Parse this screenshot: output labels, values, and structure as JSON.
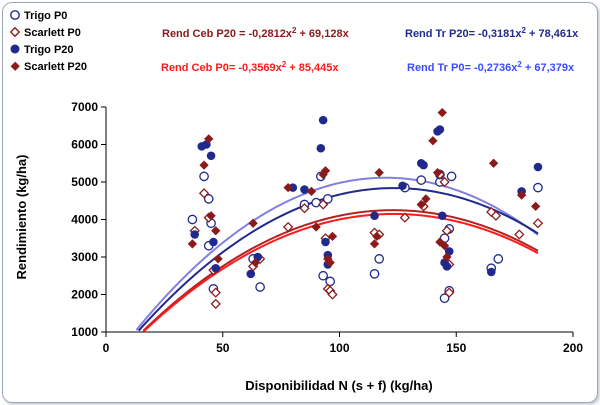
{
  "colors": {
    "trigo": "#1f2a8c",
    "scarlett": "#8b1a1a",
    "eq_ceb_p20": "#8b1a1a",
    "eq_ceb_p0": "#ff1a1a",
    "eq_tr_p20": "#1f2a8c",
    "eq_tr_p0": "#3a4cff",
    "curve_ceb_p20": "#b22222",
    "curve_ceb_p0": "#8080e0",
    "curve_tr_p20": "#1f2a8c",
    "curve_tr_p0": "#ff1a1a"
  },
  "chart_data": {
    "type": "scatter",
    "title": "",
    "xlabel": "Disponibilidad N (s + f) (kg/ha)",
    "ylabel": "Rendimiento (kg/ha)",
    "xlim": [
      0,
      200
    ],
    "ylim": [
      1000,
      7000
    ],
    "xticks": [
      0,
      50,
      100,
      150,
      200
    ],
    "yticks": [
      1000,
      2000,
      3000,
      4000,
      5000,
      6000,
      7000
    ],
    "grid": false,
    "legend_position": "top-left",
    "series": [
      {
        "name": "Trigo P0",
        "marker": "open-circle",
        "color": "#1f2a8c",
        "x": [
          37,
          42,
          44,
          44,
          45,
          46,
          63,
          66,
          85,
          90,
          92,
          93,
          95,
          96,
          115,
          117,
          128,
          135,
          143,
          143,
          145,
          145,
          147,
          147,
          148,
          165,
          168,
          185
        ],
        "y": [
          4000,
          5150,
          4550,
          3300,
          3900,
          2150,
          2950,
          2200,
          4400,
          4450,
          5150,
          2500,
          4550,
          2350,
          2550,
          2950,
          4850,
          5050,
          5000,
          5200,
          1900,
          3500,
          3750,
          2100,
          5150,
          2700,
          2950,
          4850
        ]
      },
      {
        "name": "Scarlett P0",
        "marker": "open-diamond",
        "color": "#8b1a1a",
        "x": [
          38,
          42,
          44,
          46,
          47,
          47,
          63,
          66,
          78,
          85,
          93,
          94,
          95,
          96,
          97,
          115,
          117,
          128,
          136,
          143,
          145,
          146,
          147,
          147,
          165,
          167,
          177,
          185
        ],
        "y": [
          3700,
          4700,
          4050,
          2650,
          2050,
          1750,
          2750,
          2950,
          3800,
          4300,
          4400,
          3500,
          2150,
          2100,
          2000,
          3650,
          3600,
          4050,
          4350,
          5200,
          5000,
          3700,
          2800,
          2050,
          4200,
          4100,
          3600,
          3900
        ]
      },
      {
        "name": "Trigo P20",
        "marker": "filled-circle",
        "color": "#1f2a8c",
        "x": [
          38,
          41,
          43,
          45,
          46,
          47,
          62,
          65,
          80,
          85,
          92,
          93,
          94,
          95,
          95,
          115,
          127,
          135,
          136,
          142,
          143,
          144,
          145,
          146,
          147,
          165,
          178,
          185
        ],
        "y": [
          3600,
          5950,
          6000,
          5700,
          3400,
          2700,
          2550,
          3000,
          4850,
          4800,
          5900,
          6650,
          3400,
          3050,
          2800,
          4100,
          4900,
          5500,
          5450,
          6350,
          6400,
          4100,
          2850,
          2750,
          3150,
          2600,
          4750,
          5400
        ]
      },
      {
        "name": "Scarlett P20",
        "marker": "filled-diamond",
        "color": "#8b1a1a",
        "x": [
          37,
          42,
          44,
          45,
          47,
          48,
          63,
          64,
          78,
          88,
          90,
          93,
          94,
          95,
          96,
          97,
          115,
          116,
          117,
          135,
          137,
          140,
          142,
          143,
          144,
          145,
          146,
          166,
          178,
          184
        ],
        "y": [
          3350,
          5450,
          6150,
          4100,
          3700,
          2950,
          3900,
          2850,
          4850,
          4750,
          3800,
          5200,
          5300,
          2950,
          2850,
          3550,
          3350,
          3550,
          5250,
          4400,
          4550,
          6100,
          5250,
          3400,
          6850,
          3300,
          3000,
          5500,
          4650,
          4350
        ]
      }
    ],
    "fits": [
      {
        "name": "Rend Ceb P20",
        "label": "Rend Ceb P20 = -0,2812x² + 69,128x",
        "a": -0.2812,
        "b": 69.128,
        "color": "#b22222"
      },
      {
        "name": "Rend Ceb P0",
        "label": "Rend Ceb P0= -0,3569x² + 85,445x",
        "a": -0.3569,
        "b": 85.445,
        "color": "#8080e0"
      },
      {
        "name": "Rend Tr P20",
        "label": "Rend Tr P20= -0,3181x² + 78,461x",
        "a": -0.3181,
        "b": 78.461,
        "color": "#1f2a8c"
      },
      {
        "name": "Rend Tr P0",
        "label": "Rend Tr P0= -0,2736x² + 67,379x",
        "a": -0.2736,
        "b": 67.379,
        "color": "#ff1a1a"
      }
    ]
  }
}
